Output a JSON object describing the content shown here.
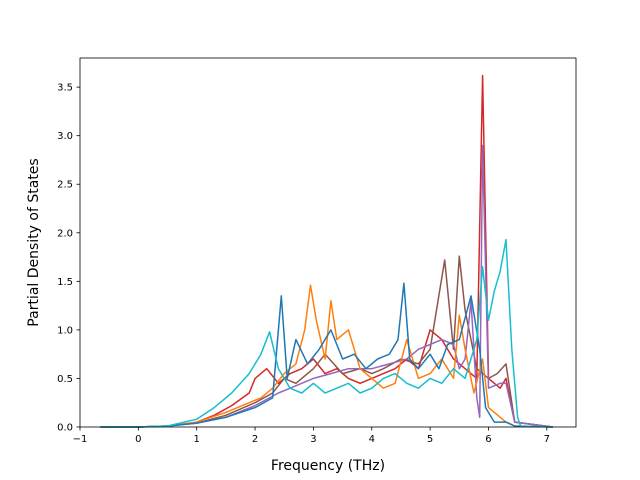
{
  "chart_data": {
    "type": "line",
    "title": "",
    "xlabel": "Frequency (THz)",
    "ylabel": "Partial Density of States",
    "xlim": [
      -1.0,
      7.5
    ],
    "ylim": [
      0.0,
      3.8
    ],
    "xticks": [
      -1,
      0,
      1,
      2,
      3,
      4,
      5,
      6,
      7
    ],
    "yticks": [
      0.0,
      0.5,
      1.0,
      1.5,
      2.0,
      2.5,
      3.0,
      3.5
    ],
    "xtick_labels": [
      "−1",
      "0",
      "1",
      "2",
      "3",
      "4",
      "5",
      "6",
      "7"
    ],
    "ytick_labels": [
      "0.0",
      "0.5",
      "1.0",
      "1.5",
      "2.0",
      "2.5",
      "3.0",
      "3.5"
    ],
    "grid": false,
    "legend": "none",
    "series": [
      {
        "color": "#d62728",
        "points": [
          [
            -0.65,
            0
          ],
          [
            0,
            0
          ],
          [
            0.5,
            0.01
          ],
          [
            0.8,
            0.03
          ],
          [
            1.0,
            0.05
          ],
          [
            1.3,
            0.12
          ],
          [
            1.6,
            0.22
          ],
          [
            1.9,
            0.35
          ],
          [
            2.0,
            0.5
          ],
          [
            2.2,
            0.6
          ],
          [
            2.4,
            0.45
          ],
          [
            2.6,
            0.55
          ],
          [
            2.8,
            0.6
          ],
          [
            3.0,
            0.7
          ],
          [
            3.2,
            0.55
          ],
          [
            3.4,
            0.6
          ],
          [
            3.6,
            0.5
          ],
          [
            3.8,
            0.45
          ],
          [
            4.0,
            0.5
          ],
          [
            4.2,
            0.55
          ],
          [
            4.4,
            0.6
          ],
          [
            4.6,
            0.7
          ],
          [
            4.8,
            0.6
          ],
          [
            5.0,
            1.0
          ],
          [
            5.2,
            0.9
          ],
          [
            5.4,
            0.7
          ],
          [
            5.6,
            0.6
          ],
          [
            5.8,
            0.5
          ],
          [
            5.9,
            3.62
          ],
          [
            6.0,
            0.5
          ],
          [
            6.2,
            0.4
          ],
          [
            6.3,
            0.5
          ],
          [
            6.45,
            0.05
          ],
          [
            7.1,
            0
          ]
        ]
      },
      {
        "color": "#8c564b",
        "points": [
          [
            -0.65,
            0
          ],
          [
            0,
            0
          ],
          [
            0.5,
            0.01
          ],
          [
            1.0,
            0.04
          ],
          [
            1.5,
            0.12
          ],
          [
            2.0,
            0.25
          ],
          [
            2.3,
            0.35
          ],
          [
            2.5,
            0.5
          ],
          [
            2.7,
            0.45
          ],
          [
            3.0,
            0.6
          ],
          [
            3.2,
            0.75
          ],
          [
            3.5,
            0.55
          ],
          [
            3.8,
            0.6
          ],
          [
            4.0,
            0.55
          ],
          [
            4.2,
            0.6
          ],
          [
            4.5,
            0.7
          ],
          [
            4.8,
            0.65
          ],
          [
            5.0,
            0.8
          ],
          [
            5.25,
            1.72
          ],
          [
            5.4,
            0.8
          ],
          [
            5.5,
            1.76
          ],
          [
            5.6,
            1.2
          ],
          [
            5.7,
            0.9
          ],
          [
            5.8,
            0.6
          ],
          [
            6.0,
            0.5
          ],
          [
            6.15,
            0.55
          ],
          [
            6.3,
            0.65
          ],
          [
            6.45,
            0.05
          ],
          [
            7.1,
            0
          ]
        ]
      },
      {
        "color": "#9467bd",
        "points": [
          [
            -0.65,
            0
          ],
          [
            0,
            0
          ],
          [
            0.5,
            0.01
          ],
          [
            1.0,
            0.04
          ],
          [
            1.5,
            0.1
          ],
          [
            2.0,
            0.22
          ],
          [
            2.4,
            0.35
          ],
          [
            2.6,
            0.4
          ],
          [
            2.8,
            0.45
          ],
          [
            3.0,
            0.5
          ],
          [
            3.3,
            0.55
          ],
          [
            3.6,
            0.6
          ],
          [
            4.0,
            0.6
          ],
          [
            4.3,
            0.65
          ],
          [
            4.6,
            0.7
          ],
          [
            4.8,
            0.8
          ],
          [
            5.0,
            0.85
          ],
          [
            5.2,
            0.9
          ],
          [
            5.4,
            0.85
          ],
          [
            5.5,
            0.6
          ],
          [
            5.6,
            0.7
          ],
          [
            5.7,
            1.3
          ],
          [
            5.8,
            0.3
          ],
          [
            5.85,
            0.1
          ],
          [
            5.9,
            2.9
          ],
          [
            6.0,
            0.4
          ],
          [
            6.2,
            0.45
          ],
          [
            6.3,
            0.45
          ],
          [
            6.45,
            0.05
          ],
          [
            7.1,
            0
          ]
        ]
      },
      {
        "color": "#ff7f0e",
        "points": [
          [
            -0.65,
            0
          ],
          [
            0,
            0
          ],
          [
            0.5,
            0.01
          ],
          [
            1.0,
            0.05
          ],
          [
            1.5,
            0.15
          ],
          [
            1.9,
            0.25
          ],
          [
            2.1,
            0.3
          ],
          [
            2.3,
            0.4
          ],
          [
            2.5,
            0.55
          ],
          [
            2.7,
            0.65
          ],
          [
            2.85,
            1.0
          ],
          [
            2.95,
            1.46
          ],
          [
            3.05,
            1.1
          ],
          [
            3.2,
            0.7
          ],
          [
            3.3,
            1.3
          ],
          [
            3.4,
            0.9
          ],
          [
            3.6,
            1.0
          ],
          [
            3.8,
            0.6
          ],
          [
            4.0,
            0.5
          ],
          [
            4.2,
            0.4
          ],
          [
            4.4,
            0.45
          ],
          [
            4.6,
            0.9
          ],
          [
            4.8,
            0.5
          ],
          [
            5.0,
            0.55
          ],
          [
            5.2,
            0.7
          ],
          [
            5.4,
            0.5
          ],
          [
            5.5,
            1.15
          ],
          [
            5.6,
            0.8
          ],
          [
            5.75,
            0.35
          ],
          [
            5.9,
            0.7
          ],
          [
            6.0,
            0.2
          ],
          [
            6.3,
            0.05
          ],
          [
            6.45,
            0.01
          ],
          [
            7.1,
            0
          ]
        ]
      },
      {
        "color": "#1f77b4",
        "points": [
          [
            -0.65,
            0
          ],
          [
            0,
            0
          ],
          [
            0.5,
            0.01
          ],
          [
            1.0,
            0.04
          ],
          [
            1.5,
            0.1
          ],
          [
            2.0,
            0.2
          ],
          [
            2.3,
            0.3
          ],
          [
            2.45,
            1.35
          ],
          [
            2.55,
            0.5
          ],
          [
            2.7,
            0.9
          ],
          [
            2.9,
            0.65
          ],
          [
            3.1,
            0.8
          ],
          [
            3.3,
            1.0
          ],
          [
            3.5,
            0.7
          ],
          [
            3.7,
            0.75
          ],
          [
            3.9,
            0.6
          ],
          [
            4.1,
            0.7
          ],
          [
            4.3,
            0.75
          ],
          [
            4.45,
            0.9
          ],
          [
            4.55,
            1.48
          ],
          [
            4.65,
            0.7
          ],
          [
            4.8,
            0.6
          ],
          [
            5.0,
            0.75
          ],
          [
            5.15,
            0.6
          ],
          [
            5.3,
            0.85
          ],
          [
            5.5,
            0.9
          ],
          [
            5.7,
            1.35
          ],
          [
            5.85,
            0.8
          ],
          [
            5.95,
            0.2
          ],
          [
            6.1,
            0.05
          ],
          [
            6.3,
            0.05
          ],
          [
            6.45,
            0.01
          ],
          [
            7.1,
            0
          ]
        ]
      },
      {
        "color": "#17becf",
        "points": [
          [
            -0.65,
            0
          ],
          [
            0,
            0
          ],
          [
            0.5,
            0.01
          ],
          [
            1.0,
            0.08
          ],
          [
            1.3,
            0.2
          ],
          [
            1.6,
            0.35
          ],
          [
            1.9,
            0.55
          ],
          [
            2.1,
            0.75
          ],
          [
            2.25,
            0.98
          ],
          [
            2.4,
            0.6
          ],
          [
            2.6,
            0.4
          ],
          [
            2.8,
            0.35
          ],
          [
            3.0,
            0.45
          ],
          [
            3.2,
            0.35
          ],
          [
            3.4,
            0.4
          ],
          [
            3.6,
            0.45
          ],
          [
            3.8,
            0.35
          ],
          [
            4.0,
            0.4
          ],
          [
            4.2,
            0.5
          ],
          [
            4.4,
            0.55
          ],
          [
            4.6,
            0.45
          ],
          [
            4.8,
            0.4
          ],
          [
            5.0,
            0.5
          ],
          [
            5.2,
            0.45
          ],
          [
            5.4,
            0.6
          ],
          [
            5.6,
            0.5
          ],
          [
            5.8,
            0.9
          ],
          [
            5.9,
            1.65
          ],
          [
            6.0,
            1.1
          ],
          [
            6.1,
            1.4
          ],
          [
            6.2,
            1.6
          ],
          [
            6.3,
            1.93
          ],
          [
            6.4,
            0.8
          ],
          [
            6.5,
            0.1
          ],
          [
            6.55,
            0.01
          ],
          [
            7.1,
            0
          ]
        ]
      }
    ]
  }
}
